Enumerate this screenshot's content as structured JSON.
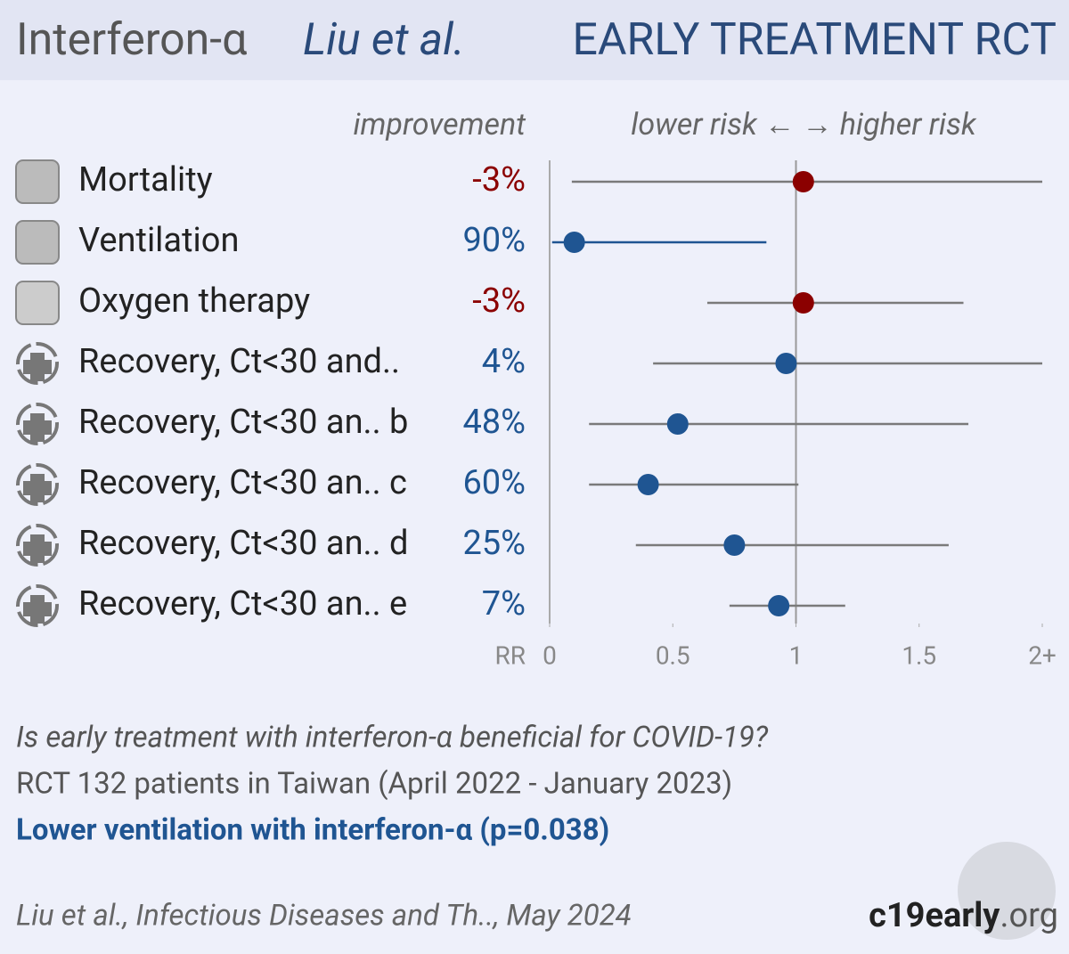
{
  "chart_data": {
    "type": "forest",
    "title": {
      "treatment": "Interferon-α",
      "study": "Liu et al.",
      "kind": "EARLY TREATMENT RCT"
    },
    "improvement_header": "improvement",
    "direction_header": "lower risk ← → higher risk",
    "categories": [
      "Mortality",
      "Ventilation",
      "Oxygen therapy",
      "Recovery, Ct<30 and..",
      "Recovery, Ct<30 an.. b",
      "Recovery, Ct<30 an.. c",
      "Recovery, Ct<30 an.. d",
      "Recovery, Ct<30 an.. e"
    ],
    "improvement": {
      "values": [
        -3,
        90,
        -3,
        4,
        48,
        60,
        25,
        7
      ],
      "value_labels": [
        "-3%",
        "90%",
        "-3%",
        "4%",
        "48%",
        "60%",
        "25%",
        "7%"
      ]
    },
    "rr": [
      1.03,
      0.1,
      1.03,
      0.96,
      0.52,
      0.4,
      0.75,
      0.93
    ],
    "ci_lower": [
      0.09,
      0.01,
      0.64,
      0.42,
      0.16,
      0.16,
      0.35,
      0.73
    ],
    "ci_upper": [
      2,
      0.88,
      1.68,
      2,
      1.7,
      1.01,
      1.62,
      1.2
    ],
    "colors": [
      "#8b0000",
      "#1f5592",
      "#8b0000",
      "#1f5592",
      "#1f5592",
      "#1f5592",
      "#1f5592",
      "#1f5592"
    ],
    "line_colors": [
      "#7a7a7a",
      "#1f5592",
      "#7a7a7a",
      "#7a7a7a",
      "#7a7a7a",
      "#7a7a7a",
      "#7a7a7a",
      "#7a7a7a"
    ],
    "xlabel": "RR",
    "xlim": [
      0,
      2
    ],
    "xticks": [
      0,
      0.5,
      1,
      1.5,
      {
        "value": 2,
        "label": "2+"
      }
    ],
    "reference": 1,
    "question": "Is early treatment with interferon-α beneficial for COVID-19?",
    "details": "RCT 132 patients in Taiwan (April 2022 - January 2023)",
    "conclusion": "Lower ventilation with interferon-α (p=0.038)",
    "citation": "Liu et al., Infectious Diseases and Th.., May 2024",
    "brand": {
      "name": "c19early",
      "tld": ".org"
    }
  }
}
